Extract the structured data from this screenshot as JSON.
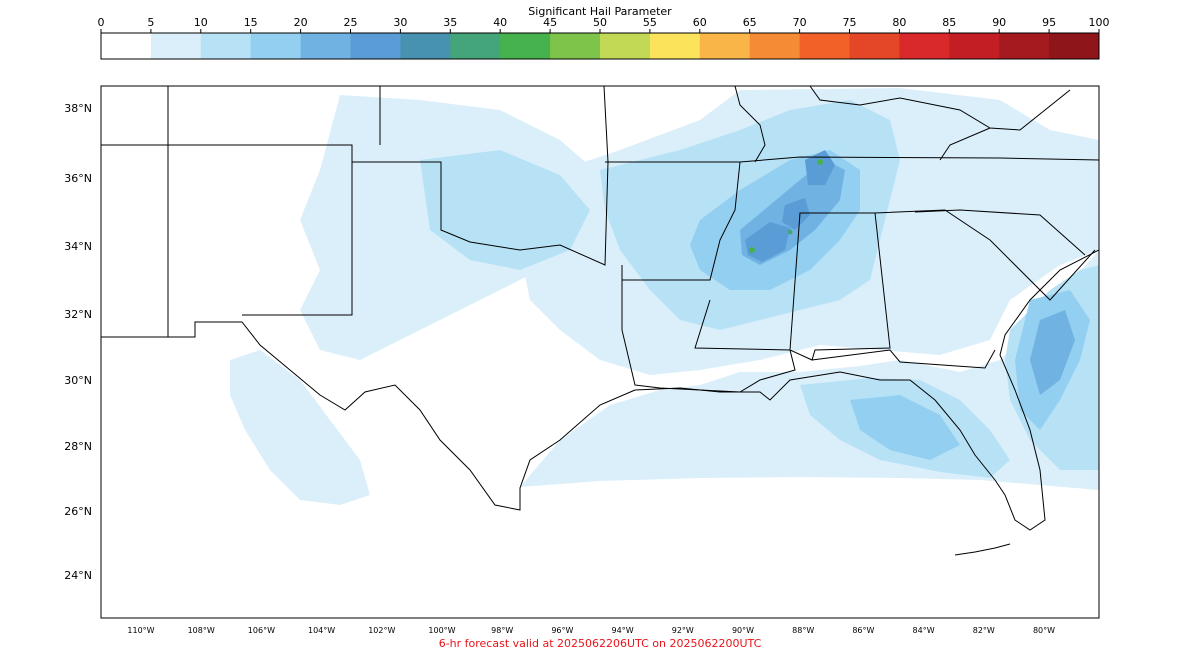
{
  "colorbar": {
    "title": "Significant Hail Parameter",
    "ticks": [
      "0",
      "5",
      "10",
      "15",
      "20",
      "25",
      "30",
      "35",
      "40",
      "45",
      "50",
      "55",
      "60",
      "65",
      "70",
      "75",
      "80",
      "85",
      "90",
      "95",
      "100"
    ],
    "colors": [
      "#ffffff",
      "#dbeffb",
      "#b7e2f6",
      "#93cff1",
      "#70b2e2",
      "#5a9cd6",
      "#4692b0",
      "#44a57a",
      "#46b24e",
      "#7ec34a",
      "#c2d955",
      "#fbe45b",
      "#f9b548",
      "#f58b34",
      "#f16128",
      "#e44728",
      "#d9292a",
      "#c31e24",
      "#a51a1f",
      "#8e1519"
    ]
  },
  "map": {
    "lat_labels": [
      "38°N",
      "36°N",
      "34°N",
      "32°N",
      "30°N",
      "28°N",
      "26°N",
      "24°N"
    ],
    "lon_labels": [
      "110°W",
      "108°W",
      "106°W",
      "104°W",
      "102°W",
      "100°W",
      "98°W",
      "96°W",
      "94°W",
      "92°W",
      "90°W",
      "88°W",
      "86°W",
      "84°W",
      "82°W",
      "80°W"
    ]
  },
  "caption": {
    "text": "6-hr forecast valid at 2025062206UTC on 2025062200UTC",
    "color": "#e8151b"
  }
}
